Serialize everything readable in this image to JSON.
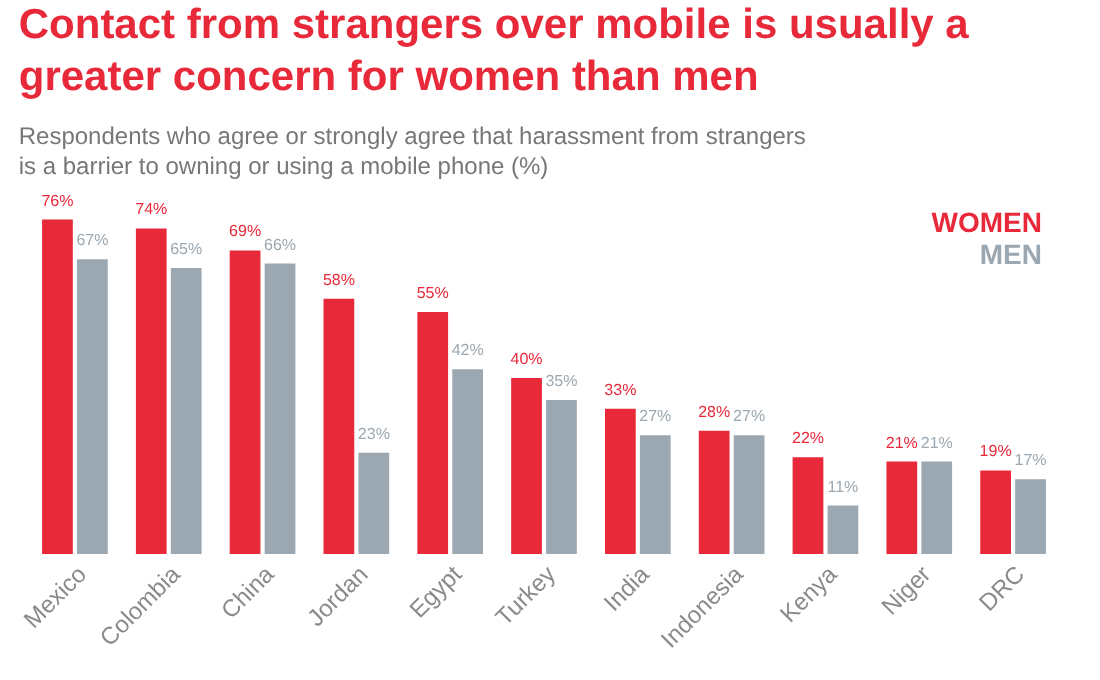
{
  "chart_data": {
    "type": "bar",
    "title": "Contact from strangers over mobile is usually a greater concern for women than men",
    "subtitle": "Respondents who agree or strongly agree that harassment from strangers is a barrier to owning or using a mobile phone (%)",
    "categories": [
      "Mexico",
      "Colombia",
      "China",
      "Jordan",
      "Egypt",
      "Turkey",
      "India",
      "Indonesia",
      "Kenya",
      "Niger",
      "DRC"
    ],
    "series": [
      {
        "name": "WOMEN",
        "color": "#e8293a",
        "values": [
          76,
          74,
          69,
          58,
          55,
          40,
          33,
          28,
          22,
          21,
          19
        ],
        "value_labels": [
          "76%",
          "74%",
          "69%",
          "58%",
          "55%",
          "40%",
          "33%",
          "28%",
          "22%",
          "21%",
          "19%"
        ]
      },
      {
        "name": "MEN",
        "color": "#9ba8b1",
        "values": [
          67,
          65,
          66,
          23,
          42,
          35,
          27,
          27,
          11,
          21,
          17
        ],
        "value_labels": [
          "67%",
          "65%",
          "66%",
          "23%",
          "42%",
          "35%",
          "27%",
          "27%",
          "11%",
          "21%",
          "17%"
        ]
      }
    ],
    "legend": "top right"
  }
}
